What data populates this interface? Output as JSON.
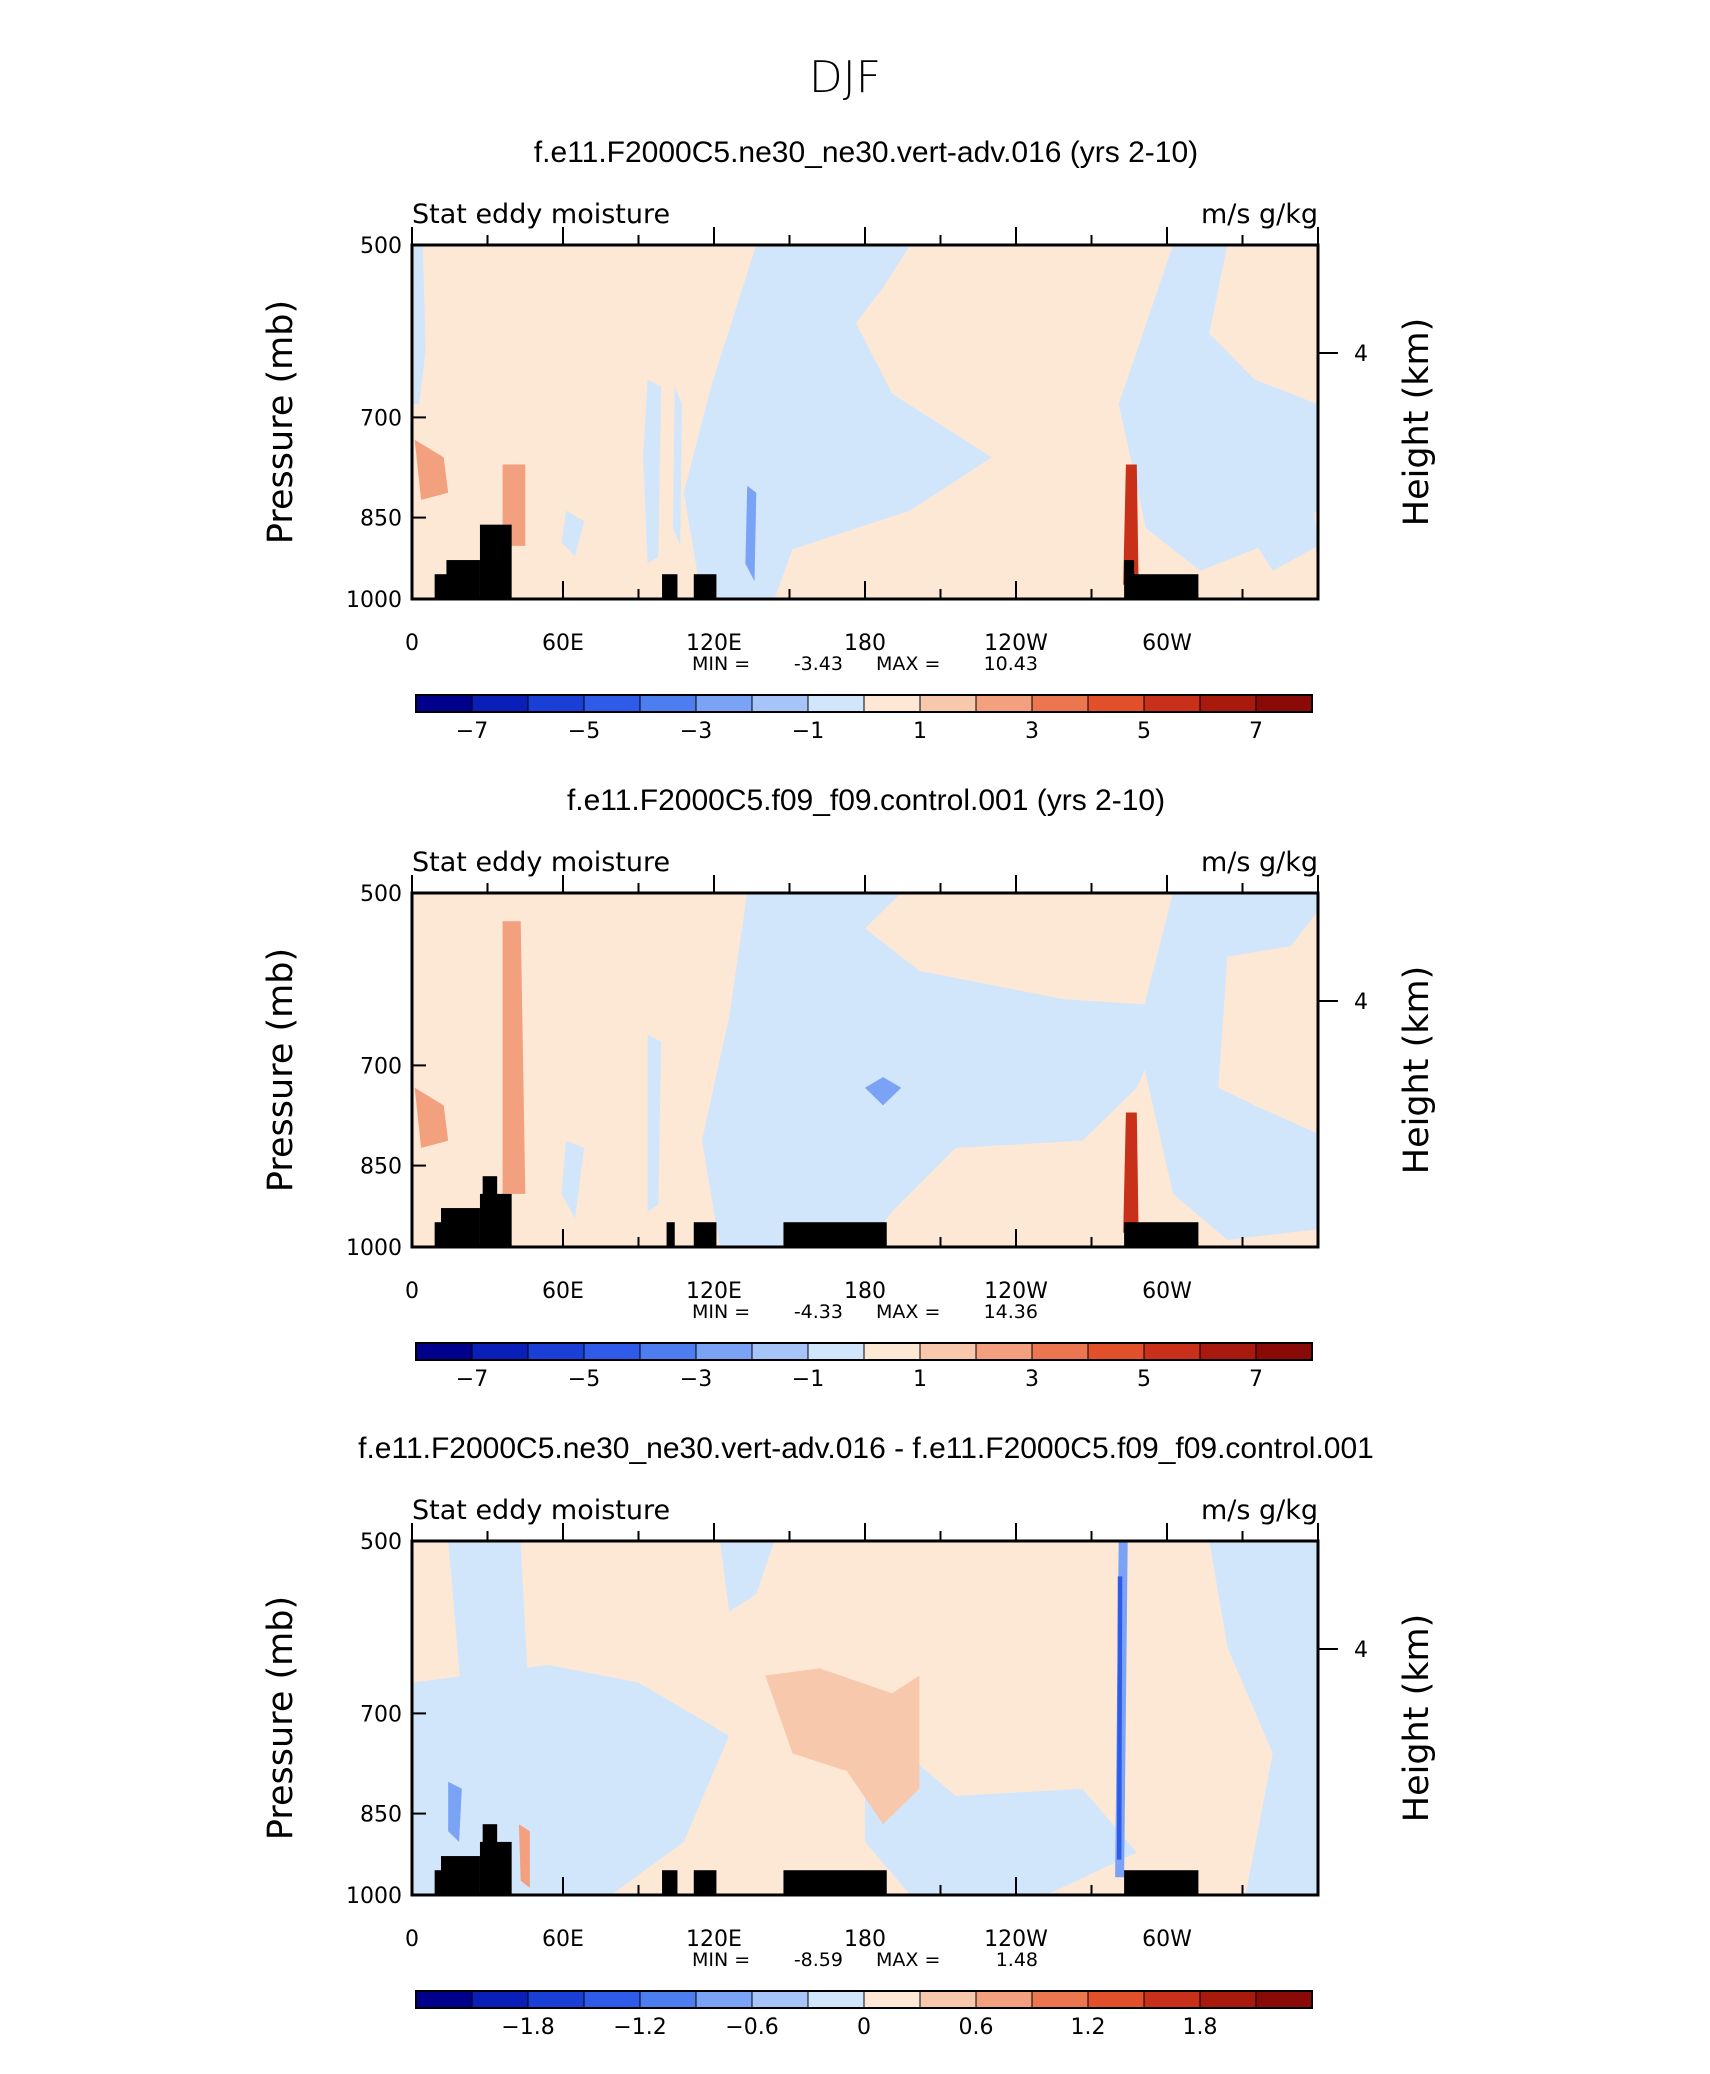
{
  "figure_title": "DJF",
  "chart_data": [
    {
      "type": "heatmap",
      "title": "f.e11.F2000C5.ne30_ne30.vert-adv.016 (yrs 2-10)",
      "left_label": "Stat eddy moisture",
      "right_label": "m/s g/kg",
      "ylabel": "Pressure (mb)",
      "ylabel_right": "Height (km)",
      "yticks": [
        "500",
        "700",
        "850",
        "1000"
      ],
      "yticks_right": [
        "4"
      ],
      "xticks": [
        "0",
        "60E",
        "120E",
        "180",
        "120W",
        "60W"
      ],
      "min_label": "MIN =",
      "min_value": "-3.43",
      "max_label": "MAX =",
      "max_value": "10.43",
      "colorbar_levels": [
        -8,
        -7,
        -6,
        -5,
        -4,
        -3,
        -2,
        -1,
        0,
        1,
        2,
        3,
        4,
        5,
        6,
        7,
        8
      ],
      "colorbar_labels": [
        "-7",
        "-5",
        "-3",
        "-1",
        "1",
        "3",
        "5",
        "7"
      ]
    },
    {
      "type": "heatmap",
      "title": "f.e11.F2000C5.f09_f09.control.001 (yrs 2-10)",
      "left_label": "Stat eddy moisture",
      "right_label": "m/s g/kg",
      "ylabel": "Pressure (mb)",
      "ylabel_right": "Height (km)",
      "yticks": [
        "500",
        "700",
        "850",
        "1000"
      ],
      "yticks_right": [
        "4"
      ],
      "xticks": [
        "0",
        "60E",
        "120E",
        "180",
        "120W",
        "60W"
      ],
      "min_label": "MIN =",
      "min_value": "-4.33",
      "max_label": "MAX =",
      "max_value": "14.36",
      "colorbar_levels": [
        -8,
        -7,
        -6,
        -5,
        -4,
        -3,
        -2,
        -1,
        0,
        1,
        2,
        3,
        4,
        5,
        6,
        7,
        8
      ],
      "colorbar_labels": [
        "-7",
        "-5",
        "-3",
        "-1",
        "1",
        "3",
        "5",
        "7"
      ]
    },
    {
      "type": "heatmap",
      "title": "f.e11.F2000C5.ne30_ne30.vert-adv.016 - f.e11.F2000C5.f09_f09.control.001",
      "left_label": "Stat eddy moisture",
      "right_label": "m/s g/kg",
      "ylabel": "Pressure (mb)",
      "ylabel_right": "Height (km)",
      "yticks": [
        "500",
        "700",
        "850",
        "1000"
      ],
      "yticks_right": [
        "4"
      ],
      "xticks": [
        "0",
        "60E",
        "120E",
        "180",
        "120W",
        "60W"
      ],
      "min_label": "MIN =",
      "min_value": "-8.59",
      "max_label": "MAX =",
      "max_value": "1.48",
      "colorbar_levels": [
        -2.4,
        -2.1,
        -1.8,
        -1.5,
        -1.2,
        -0.9,
        -0.6,
        -0.3,
        0,
        0.3,
        0.6,
        0.9,
        1.2,
        1.5,
        1.8,
        2.1,
        2.4
      ],
      "colorbar_labels": [
        "-1.8",
        "-1.2",
        "-0.6",
        "0",
        "0.6",
        "1.2",
        "1.8"
      ]
    }
  ],
  "colors": {
    "palette": [
      "#00008c",
      "#0a1fb8",
      "#1a3fd6",
      "#2e5ce8",
      "#4d7ef0",
      "#7aa2f5",
      "#a6c4f8",
      "#d2e6fb",
      "#fde8d6",
      "#f8c8ad",
      "#f2a07e",
      "#ec7650",
      "#e24f2b",
      "#c9301a",
      "#a8190e",
      "#8a0a08"
    ],
    "background_pos": "#fde8d6",
    "background_neg": "#d2e6fb",
    "land": "#000000"
  }
}
